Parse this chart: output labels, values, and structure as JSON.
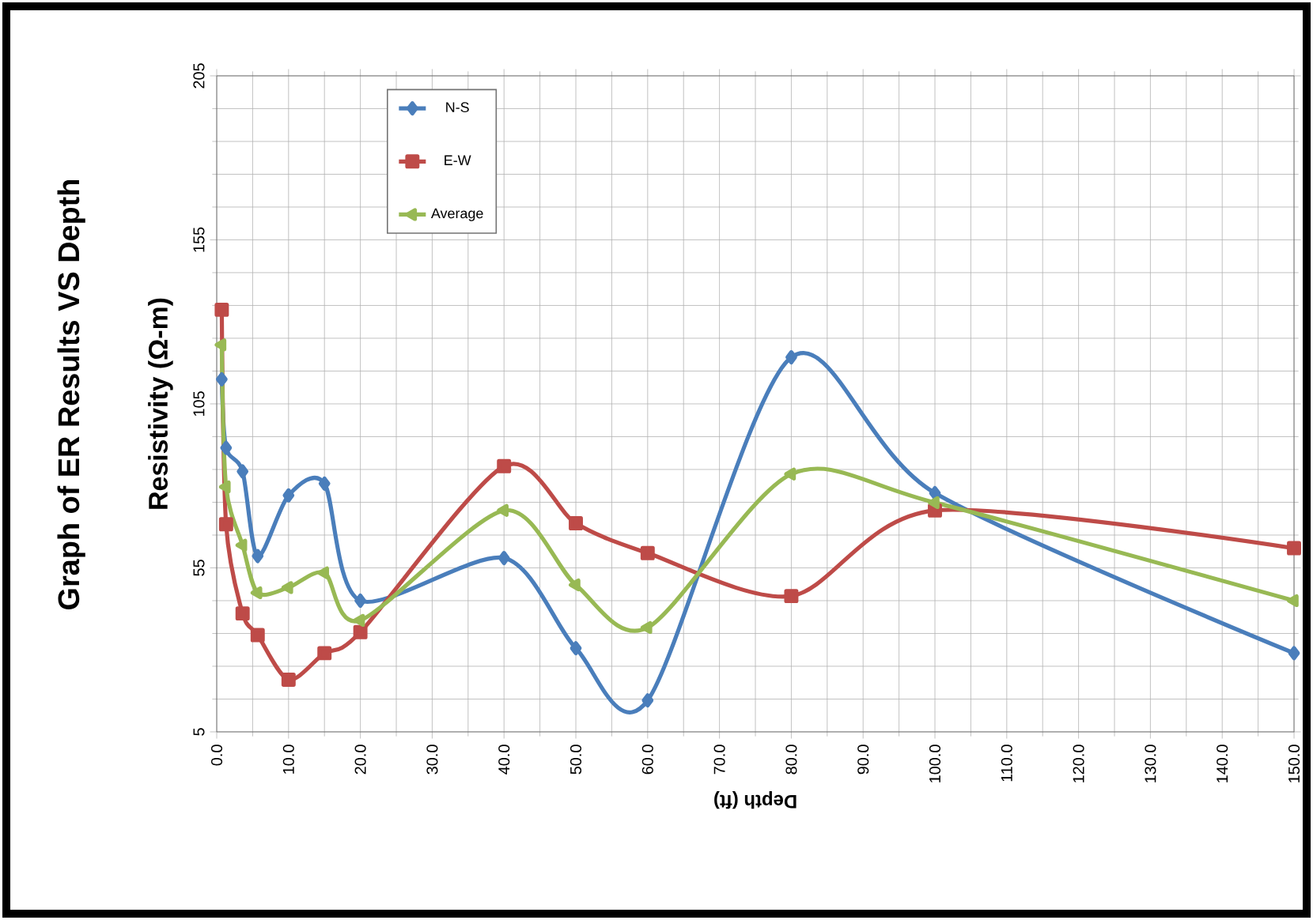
{
  "chart_data": {
    "type": "line",
    "title": "Graph of ER Results VS Depth",
    "xlabel": "Depth (ft)",
    "ylabel": "Resistivity (Ω-m)",
    "x": [
      0.7,
      1.3,
      3.6,
      5.7,
      10,
      15,
      20,
      40,
      50,
      60,
      80,
      100,
      150
    ],
    "series": [
      {
        "name": "N-S",
        "color": "#4a7ebb",
        "marker": "diamond",
        "values": [
          112.5,
          91.6,
          84.4,
          58.6,
          77.1,
          80.7,
          45,
          58,
          30.5,
          14.6,
          119.2,
          77.8,
          29
        ]
      },
      {
        "name": "E-W",
        "color": "#be4b48",
        "marker": "square",
        "values": [
          133.7,
          68.3,
          41.1,
          34.5,
          20.9,
          29,
          35.4,
          86,
          68.6,
          59.5,
          46.4,
          72.5,
          61
        ]
      },
      {
        "name": "Average",
        "color": "#98b954",
        "marker": "triangle",
        "values": [
          123,
          79.7,
          61.9,
          47.4,
          49,
          53.5,
          39,
          72.5,
          49.8,
          36.8,
          83.6,
          74.9,
          45
        ]
      }
    ],
    "xlim": [
      0,
      150
    ],
    "ylim": [
      5,
      205
    ],
    "xticks": [
      {
        "value": 0,
        "label": "0.0"
      },
      {
        "value": 10,
        "label": "10.0"
      },
      {
        "value": 20,
        "label": "20.0"
      },
      {
        "value": 30,
        "label": "30.0"
      },
      {
        "value": 40,
        "label": "40.0"
      },
      {
        "value": 50,
        "label": "50.0"
      },
      {
        "value": 60,
        "label": "60.0"
      },
      {
        "value": 70,
        "label": "70.0"
      },
      {
        "value": 80,
        "label": "80.0"
      },
      {
        "value": 90,
        "label": "90.0"
      },
      {
        "value": 100,
        "label": "100.0"
      },
      {
        "value": 110,
        "label": "110.0"
      },
      {
        "value": 120,
        "label": "120.0"
      },
      {
        "value": 130,
        "label": "130.0"
      },
      {
        "value": 140,
        "label": "140.0"
      },
      {
        "value": 150,
        "label": "150.0"
      }
    ],
    "yticks": [
      5,
      55,
      105,
      155,
      205
    ],
    "grid": true,
    "legend": "top",
    "line_style": "solid"
  }
}
